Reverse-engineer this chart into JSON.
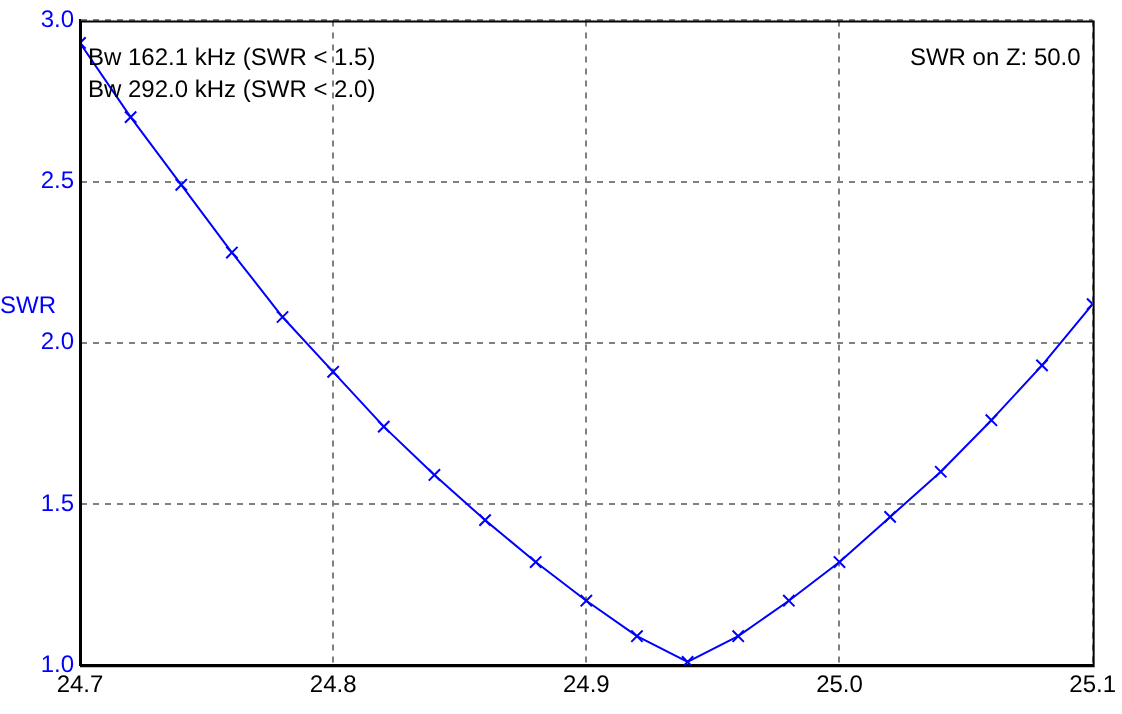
{
  "chart_data": {
    "type": "line",
    "ylabel": "SWR",
    "annotations": [
      "Bw 162.1 kHz (SWR < 1.5)",
      "Bw 292.0 kHz (SWR < 2.0)",
      "SWR on Z: 50.0"
    ],
    "x": [
      24.7,
      24.72,
      24.74,
      24.76,
      24.78,
      24.8,
      24.82,
      24.84,
      24.86,
      24.88,
      24.9,
      24.92,
      24.94,
      24.96,
      24.98,
      25.0,
      25.02,
      25.04,
      25.06,
      25.08,
      25.1
    ],
    "series": [
      {
        "color": "#0000ff",
        "values": [
          2.93,
          2.7,
          2.49,
          2.28,
          2.08,
          1.91,
          1.74,
          1.59,
          1.45,
          1.32,
          1.2,
          1.09,
          1.01,
          1.09,
          1.2,
          1.32,
          1.46,
          1.6,
          1.76,
          1.93,
          2.12
        ]
      }
    ],
    "xlim": [
      24.7,
      25.1
    ],
    "xticks": [
      {
        "value": 24.7,
        "label": "24.7"
      },
      {
        "value": 24.8,
        "label": "24.8"
      },
      {
        "value": 24.9,
        "label": "24.9"
      },
      {
        "value": 25.0,
        "label": "25.0"
      },
      {
        "value": 25.1,
        "label": "25.1"
      }
    ],
    "ylim": [
      1.0,
      3.0
    ],
    "yticks": [
      {
        "value": 1.0,
        "label": "1.0"
      },
      {
        "value": 1.5,
        "label": "1.5"
      },
      {
        "value": 2.0,
        "label": "2.0"
      },
      {
        "value": 2.5,
        "label": "2.5"
      },
      {
        "value": 3.0,
        "label": "3.0"
      }
    ],
    "grid": true,
    "marker": "cross",
    "line_style": "solid",
    "legend": false
  }
}
